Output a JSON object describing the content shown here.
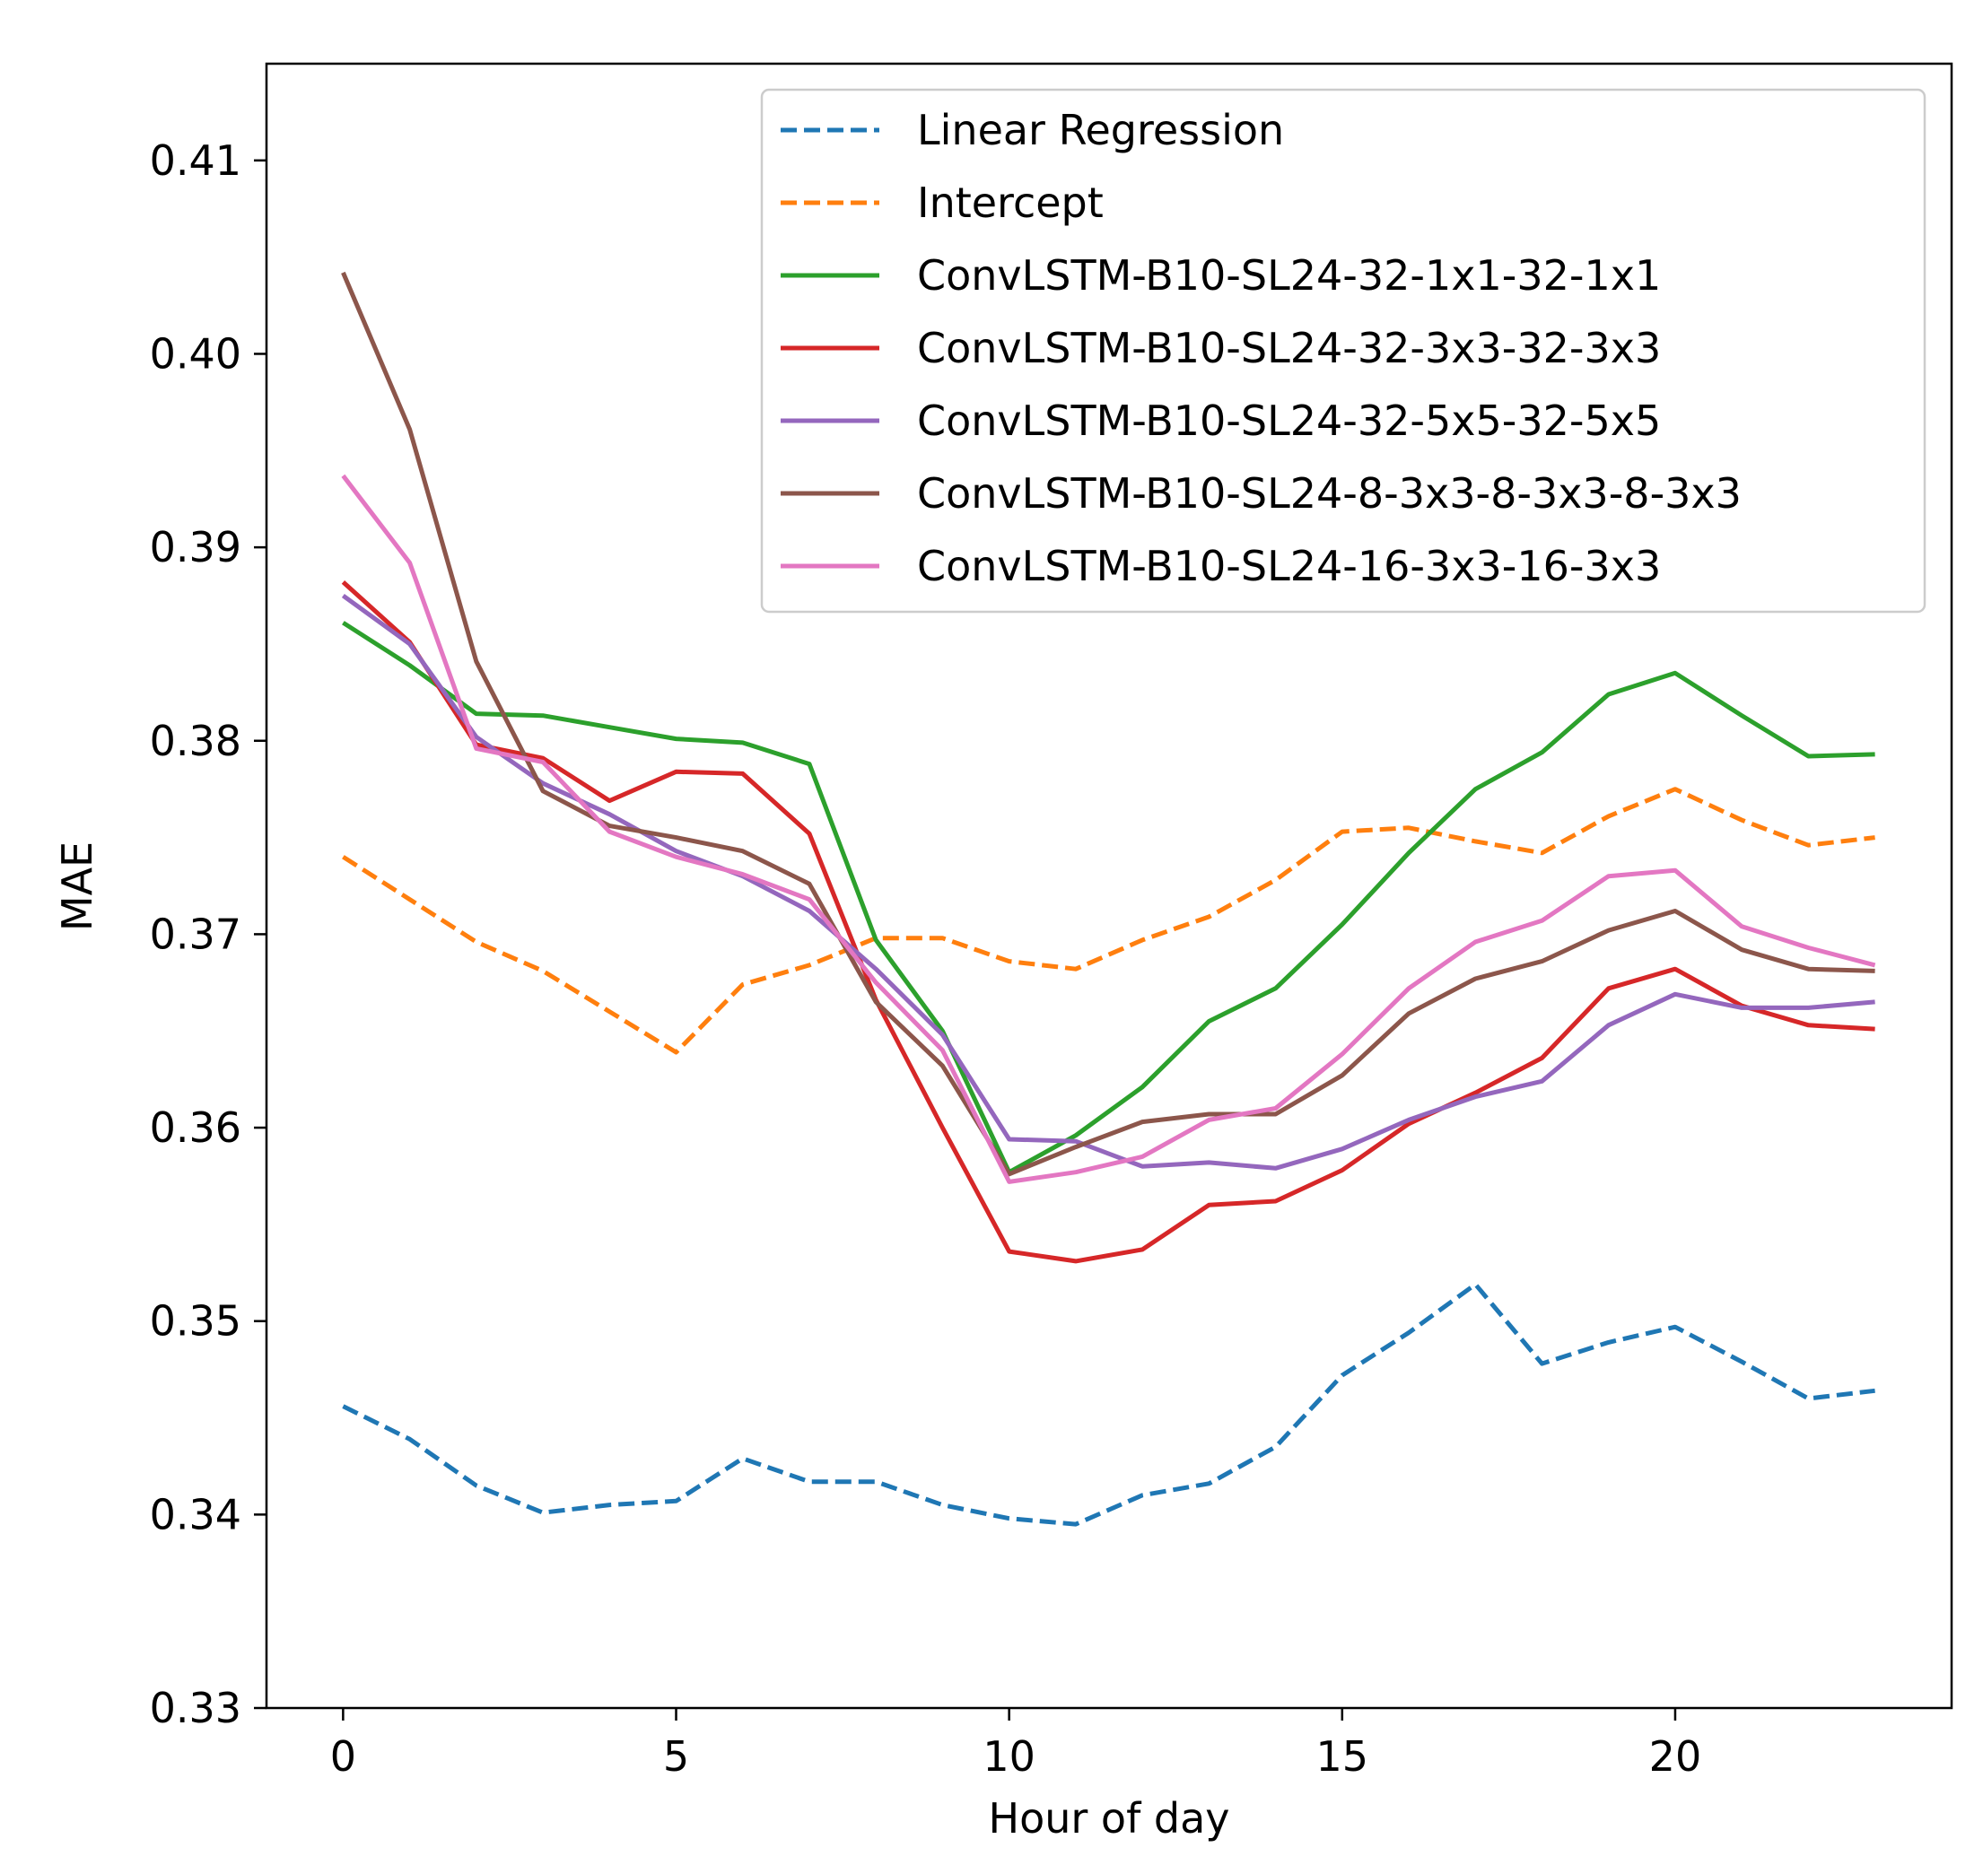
{
  "chart_data": {
    "type": "line",
    "title": "",
    "xlabel": "Hour of day",
    "ylabel": "MAE",
    "xlim": [
      -1.15,
      24.15
    ],
    "ylim": [
      0.33,
      0.415
    ],
    "xticks": [
      0,
      5,
      10,
      15,
      20
    ],
    "xtick_labels": [
      "0",
      "5",
      "10",
      "15",
      "20"
    ],
    "yticks": [
      0.33,
      0.34,
      0.35,
      0.36,
      0.37,
      0.38,
      0.39,
      0.4,
      0.41
    ],
    "ytick_labels": [
      "0.33",
      "0.34",
      "0.35",
      "0.36",
      "0.37",
      "0.38",
      "0.39",
      "0.40",
      "0.41"
    ],
    "grid": false,
    "legend_position": "top-right",
    "x": [
      0,
      1,
      2,
      3,
      4,
      5,
      6,
      7,
      8,
      9,
      10,
      11,
      12,
      13,
      14,
      15,
      16,
      17,
      18,
      19,
      20,
      21,
      22,
      23
    ],
    "series": [
      {
        "name": "Linear Regression",
        "color": "#1f77b4",
        "style": "dashed",
        "values": [
          0.3456,
          0.3439,
          0.3415,
          0.3401,
          0.3405,
          0.3407,
          0.3429,
          0.3417,
          0.3417,
          0.3405,
          0.3398,
          0.3395,
          0.341,
          0.3416,
          0.3435,
          0.3472,
          0.3494,
          0.3519,
          0.3478,
          0.3489,
          0.3497,
          0.3479,
          0.346,
          0.3464
        ]
      },
      {
        "name": "Intercept",
        "color": "#ff7f0e",
        "style": "dashed",
        "values": [
          0.374,
          0.3718,
          0.3696,
          0.3681,
          0.366,
          0.3639,
          0.3674,
          0.3684,
          0.3698,
          0.3698,
          0.3686,
          0.3682,
          0.3697,
          0.3709,
          0.3728,
          0.3753,
          0.3755,
          0.3748,
          0.3742,
          0.3761,
          0.3775,
          0.3759,
          0.3746,
          0.375
        ]
      },
      {
        "name": "ConvLSTM-B10-SL24-32-1x1-32-1x1",
        "color": "#2ca02c",
        "style": "solid",
        "values": [
          0.3861,
          0.3839,
          0.3814,
          0.3813,
          0.3807,
          0.3801,
          0.3799,
          0.3788,
          0.3697,
          0.365,
          0.3577,
          0.3596,
          0.3621,
          0.3655,
          0.3672,
          0.3705,
          0.3742,
          0.3775,
          0.3794,
          0.3824,
          0.3835,
          0.3813,
          0.3792,
          0.3793
        ]
      },
      {
        "name": "ConvLSTM-B10-SL24-32-3x3-32-3x3",
        "color": "#d62728",
        "style": "solid",
        "values": [
          0.3882,
          0.3851,
          0.3798,
          0.3791,
          0.3769,
          0.3784,
          0.3783,
          0.3752,
          0.3666,
          0.36,
          0.3536,
          0.3531,
          0.3537,
          0.356,
          0.3562,
          0.3578,
          0.3602,
          0.3618,
          0.3636,
          0.3672,
          0.3682,
          0.3663,
          0.3653,
          0.3651
        ]
      },
      {
        "name": "ConvLSTM-B10-SL24-32-5x5-32-5x5",
        "color": "#9467bd",
        "style": "solid",
        "values": [
          0.3875,
          0.385,
          0.3802,
          0.3778,
          0.3762,
          0.3743,
          0.373,
          0.3712,
          0.3682,
          0.3648,
          0.3594,
          0.3593,
          0.358,
          0.3582,
          0.3579,
          0.3589,
          0.3604,
          0.3616,
          0.3624,
          0.3653,
          0.3669,
          0.3662,
          0.3662,
          0.3665
        ]
      },
      {
        "name": "ConvLSTM-B10-SL24-8-3x3-8-3x3-8-3x3",
        "color": "#8c564b",
        "style": "solid",
        "values": [
          0.4042,
          0.3961,
          0.3841,
          0.3774,
          0.3756,
          0.375,
          0.3743,
          0.3726,
          0.3665,
          0.3632,
          0.3576,
          0.359,
          0.3603,
          0.3607,
          0.3607,
          0.3627,
          0.3659,
          0.3677,
          0.3686,
          0.3702,
          0.3712,
          0.3692,
          0.3682,
          0.3681
        ]
      },
      {
        "name": "ConvLSTM-B10-SL24-16-3x3-16-3x3",
        "color": "#e377c2",
        "style": "solid",
        "values": [
          0.3937,
          0.3892,
          0.3796,
          0.3789,
          0.3753,
          0.374,
          0.3731,
          0.3718,
          0.3675,
          0.364,
          0.3572,
          0.3577,
          0.3585,
          0.3604,
          0.361,
          0.3638,
          0.3672,
          0.3696,
          0.3707,
          0.373,
          0.3733,
          0.3704,
          0.3693,
          0.3684
        ]
      }
    ]
  }
}
